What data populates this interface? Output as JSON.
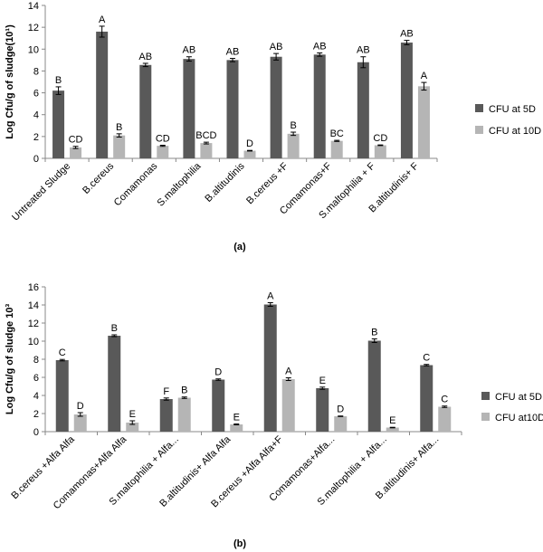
{
  "chart_data": [
    {
      "type": "bar",
      "panel_label": "(a)",
      "ylabel": "Log Cfu/g  of  sludge(10¹)",
      "ylim": [
        0,
        14
      ],
      "yticks": [
        0,
        2,
        4,
        6,
        8,
        10,
        12,
        14
      ],
      "grid": false,
      "legend_position": "right",
      "categories": [
        "Untreated Sludge",
        "B.cereus",
        "Comamonas",
        "S.maltophilia",
        "B.altitudinis",
        "B.cereus +F",
        "Comamonas+F",
        "S.maltophilia + F",
        "B.altitudinis+ F"
      ],
      "series": [
        {
          "name": "CFU at 5D",
          "color": "#595959",
          "values": [
            6.2,
            11.6,
            8.55,
            9.1,
            9.0,
            9.3,
            9.5,
            8.8,
            10.6
          ],
          "errors": [
            0.35,
            0.5,
            0.15,
            0.2,
            0.15,
            0.3,
            0.15,
            0.5,
            0.2
          ],
          "letters": [
            "B",
            "A",
            "AB",
            "AB",
            "AB",
            "AB",
            "AB",
            "AB",
            "AB"
          ]
        },
        {
          "name": "CFU at 10D",
          "color": "#b5b5b5",
          "values": [
            1.0,
            2.1,
            1.15,
            1.4,
            0.7,
            2.25,
            1.6,
            1.2,
            6.6
          ],
          "errors": [
            0.1,
            0.15,
            0.05,
            0.08,
            0.03,
            0.15,
            0.05,
            0.03,
            0.35
          ],
          "letters": [
            "CD",
            "B",
            "CD",
            "BCD",
            "D",
            "B",
            "BC",
            "CD",
            "A"
          ]
        }
      ]
    },
    {
      "type": "bar",
      "panel_label": "(b)",
      "ylabel": "Log Cfu/g of sludge 10³",
      "ylim": [
        0,
        16
      ],
      "yticks": [
        0,
        2,
        4,
        6,
        8,
        10,
        12,
        14,
        16
      ],
      "grid": false,
      "legend_position": "right",
      "categories": [
        "B.cereus +Alfa Alfa",
        "Comamonas+Alfa Alfa",
        "S.maltophilia + Alfa...",
        "B.altitudinis+ Alfa Alfa",
        "B.cereus +Alfa Alfa+F",
        "Comamonas+Alfa...",
        "S.maltophilia + Alfa...",
        "B.altitudinis+ Alfa..."
      ],
      "series": [
        {
          "name": "CFU at 5D",
          "color": "#595959",
          "values": [
            7.9,
            10.6,
            3.6,
            5.75,
            14.05,
            4.8,
            10.05,
            7.35
          ],
          "errors": [
            0.08,
            0.1,
            0.12,
            0.08,
            0.2,
            0.12,
            0.2,
            0.08
          ],
          "letters": [
            "C",
            "B",
            "F",
            "D",
            "A",
            "E",
            "B",
            "C"
          ]
        },
        {
          "name": "CFU at10D",
          "color": "#b5b5b5",
          "values": [
            1.9,
            1.0,
            3.75,
            0.8,
            5.8,
            1.7,
            0.45,
            2.75
          ],
          "errors": [
            0.2,
            0.2,
            0.08,
            0.05,
            0.15,
            0.03,
            0.03,
            0.08
          ],
          "letters": [
            "D",
            "E",
            "B",
            "E",
            "A",
            "D",
            "E",
            "C"
          ]
        }
      ]
    }
  ]
}
